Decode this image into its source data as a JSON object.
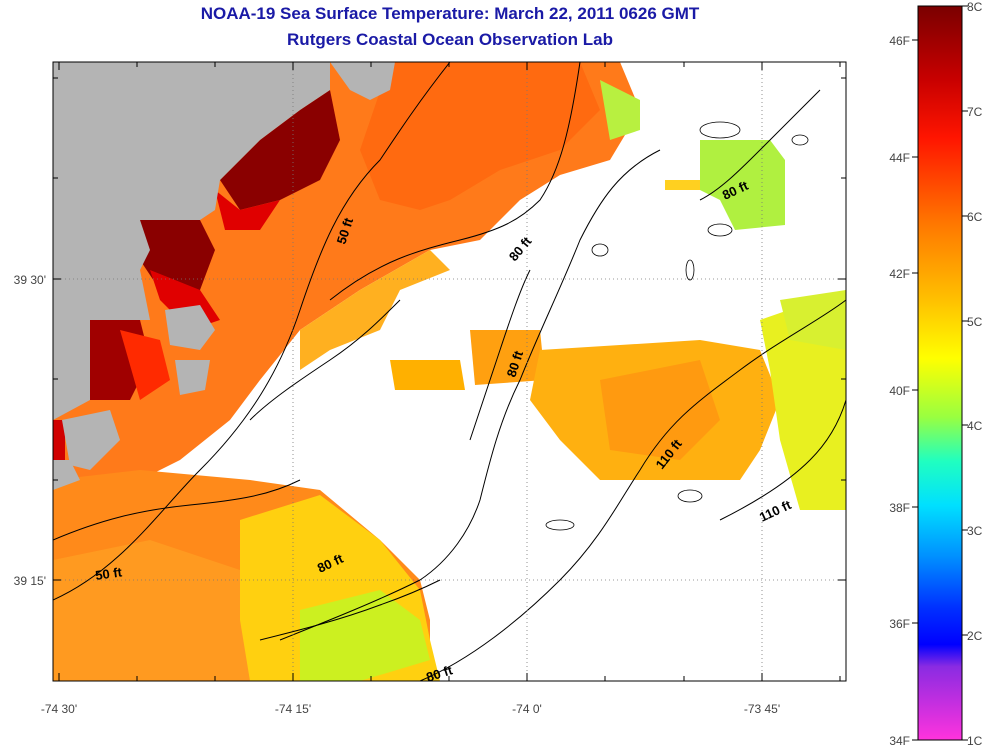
{
  "title": "NOAA-19 Sea Surface Temperature:  March 22, 2011 0626 GMT",
  "subtitle": "Rutgers Coastal Ocean Observation Lab",
  "axes": {
    "x_ticks": [
      "-74 30'",
      "-74 15'",
      "-74 0'",
      "-73 45'"
    ],
    "y_ticks": [
      "39 30'",
      "39 15'"
    ]
  },
  "contour_labels": [
    "50 ft",
    "80 ft",
    "80 ft",
    "80 ft",
    "80 ft",
    "110 ft",
    "110 ft",
    "50 ft",
    "80 ft",
    "80 ft"
  ],
  "colorbar": {
    "fahrenheit": [
      "46F",
      "44F",
      "42F",
      "40F",
      "38F",
      "36F",
      "34F"
    ],
    "celsius": [
      "8C",
      "7C",
      "6C",
      "5C",
      "4C",
      "3C",
      "2C",
      "1C"
    ]
  },
  "colors": {
    "land": "#b4b4b4",
    "title": "#1a1aa6"
  }
}
